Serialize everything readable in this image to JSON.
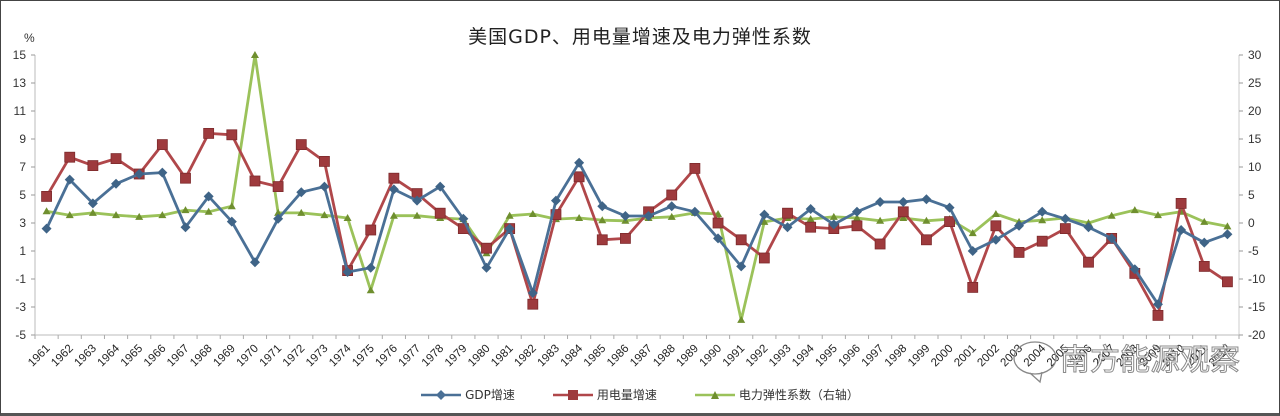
{
  "title": "美国GDP、用电量增速及电力弹性系数",
  "left_axis_unit": "%",
  "watermark": "南方能源观察",
  "legend": [
    {
      "label": "GDP增速",
      "color": "#4a7096",
      "marker": "diamond"
    },
    {
      "label": "用电量增速",
      "color": "#b0474a",
      "marker": "square"
    },
    {
      "label": "电力弹性系数（右轴）",
      "color": "#9bc25a",
      "marker": "triangle"
    }
  ],
  "chart_data": {
    "type": "line",
    "title": "美国GDP、用电量增速及电力弹性系数",
    "xlabel": "",
    "ylabel": "%",
    "ylim": [
      -5,
      15
    ],
    "yticks": [
      15,
      13,
      11,
      9,
      7,
      5,
      3,
      1,
      -1,
      -3,
      -5
    ],
    "y2lim": [
      -20,
      30
    ],
    "y2ticks": [
      30,
      25,
      20,
      15,
      10,
      5,
      0,
      -5,
      -10,
      -15,
      -20
    ],
    "grid": false,
    "legend_position": "bottom",
    "categories": [
      "1961",
      "1962",
      "1963",
      "1964",
      "1965",
      "1966",
      "1967",
      "1968",
      "1969",
      "1970",
      "1971",
      "1972",
      "1973",
      "1974",
      "1975",
      "1976",
      "1977",
      "1978",
      "1979",
      "1980",
      "1981",
      "1982",
      "1983",
      "1984",
      "1985",
      "1986",
      "1987",
      "1988",
      "1989",
      "1990",
      "1991",
      "1992",
      "1993",
      "1994",
      "1995",
      "1996",
      "1997",
      "1998",
      "1999",
      "2000",
      "2001",
      "2002",
      "2003",
      "2004",
      "2005",
      "2006",
      "2007",
      "2008",
      "2009",
      "2010",
      "2011",
      "2012"
    ],
    "series": [
      {
        "name": "GDP增速",
        "axis": "left",
        "color": "#4a7096",
        "values": [
          2.6,
          6.1,
          4.4,
          5.8,
          6.5,
          6.6,
          2.7,
          4.9,
          3.1,
          0.2,
          3.3,
          5.2,
          5.6,
          -0.5,
          -0.2,
          5.4,
          4.6,
          5.6,
          3.3,
          -0.2,
          2.6,
          -2.0,
          4.6,
          7.3,
          4.2,
          3.5,
          3.5,
          4.2,
          3.8,
          1.9,
          -0.1,
          3.6,
          2.7,
          4.0,
          2.9,
          3.8,
          4.5,
          4.5,
          4.7,
          4.1,
          1.0,
          1.8,
          2.8,
          3.8,
          3.3,
          2.7,
          1.9,
          -0.3,
          -2.8,
          2.5,
          1.6,
          2.2
        ]
      },
      {
        "name": "用电量增速",
        "axis": "left",
        "color": "#b0474a",
        "values": [
          4.9,
          7.7,
          7.1,
          7.6,
          6.5,
          8.6,
          6.2,
          9.4,
          9.3,
          6.0,
          5.6,
          8.6,
          7.4,
          -0.4,
          2.5,
          6.2,
          5.1,
          3.7,
          2.6,
          1.2,
          2.6,
          -2.8,
          3.6,
          6.3,
          1.8,
          1.9,
          3.8,
          5.0,
          6.9,
          3.0,
          1.8,
          0.5,
          3.7,
          2.7,
          2.6,
          2.8,
          1.5,
          3.8,
          1.8,
          3.1,
          -1.6,
          2.8,
          0.9,
          1.7,
          2.6,
          0.2,
          1.9,
          -0.6,
          -3.6,
          4.4,
          -0.1,
          -1.2
        ]
      },
      {
        "name": "电力弹性系数（右轴）",
        "axis": "right",
        "color": "#9bc25a",
        "values": [
          2.1,
          1.4,
          1.8,
          1.4,
          1.1,
          1.4,
          2.3,
          2.0,
          3.0,
          30.0,
          1.8,
          1.8,
          1.4,
          0.9,
          -12.0,
          1.3,
          1.3,
          0.9,
          0.7,
          -5.4,
          1.3,
          1.6,
          0.7,
          0.9,
          0.5,
          0.4,
          0.9,
          1.1,
          1.8,
          1.6,
          -17.3,
          0.2,
          0.9,
          0.7,
          1.1,
          0.9,
          0.4,
          0.9,
          0.4,
          0.7,
          -1.8,
          1.6,
          0.2,
          0.5,
          0.9,
          0.0,
          1.3,
          2.3,
          1.4,
          2.0,
          0.2,
          -0.6
        ]
      }
    ]
  }
}
